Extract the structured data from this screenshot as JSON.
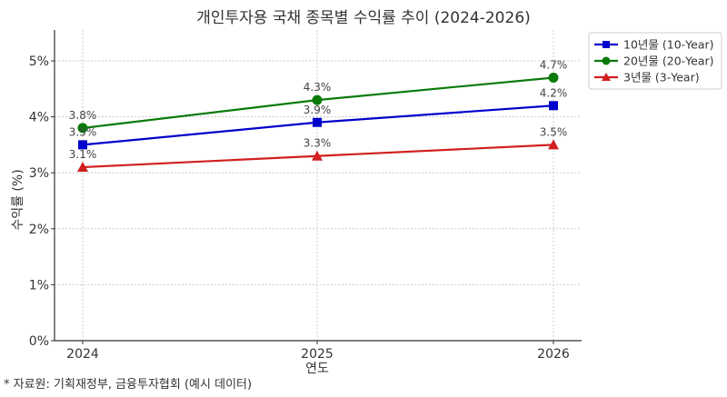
{
  "chart_data": {
    "type": "line",
    "title": "개인투자용 국채 종목별 수익률 추이 (2024-2026)",
    "xlabel": "연도",
    "ylabel": "수익률 (%)",
    "x": [
      "2024",
      "2025",
      "2026"
    ],
    "ylim": [
      0,
      5.55
    ],
    "yticks": [
      "0%",
      "1%",
      "2%",
      "3%",
      "4%",
      "5%"
    ],
    "grid": true,
    "legend_position": "upper right, outside plot",
    "series": [
      {
        "name": "10년물 (10-Year)",
        "color": "#0000cc",
        "marker": "square",
        "values": [
          3.5,
          3.9,
          4.2
        ],
        "labels": [
          "3.5%",
          "3.9%",
          "4.2%"
        ]
      },
      {
        "name": "20년물 (20-Year)",
        "color": "#0a7a0a",
        "marker": "circle",
        "values": [
          3.8,
          4.3,
          4.7
        ],
        "labels": [
          "3.8%",
          "4.3%",
          "4.7%"
        ]
      },
      {
        "name": "3년물 (3-Year)",
        "color": "#d11f1f",
        "marker": "triangle",
        "values": [
          3.1,
          3.3,
          3.5
        ],
        "labels": [
          "3.1%",
          "3.3%",
          "3.5%"
        ]
      }
    ],
    "footnote": "* 자료원: 기획재정부, 금융투자협회 (예시 데이터)"
  }
}
